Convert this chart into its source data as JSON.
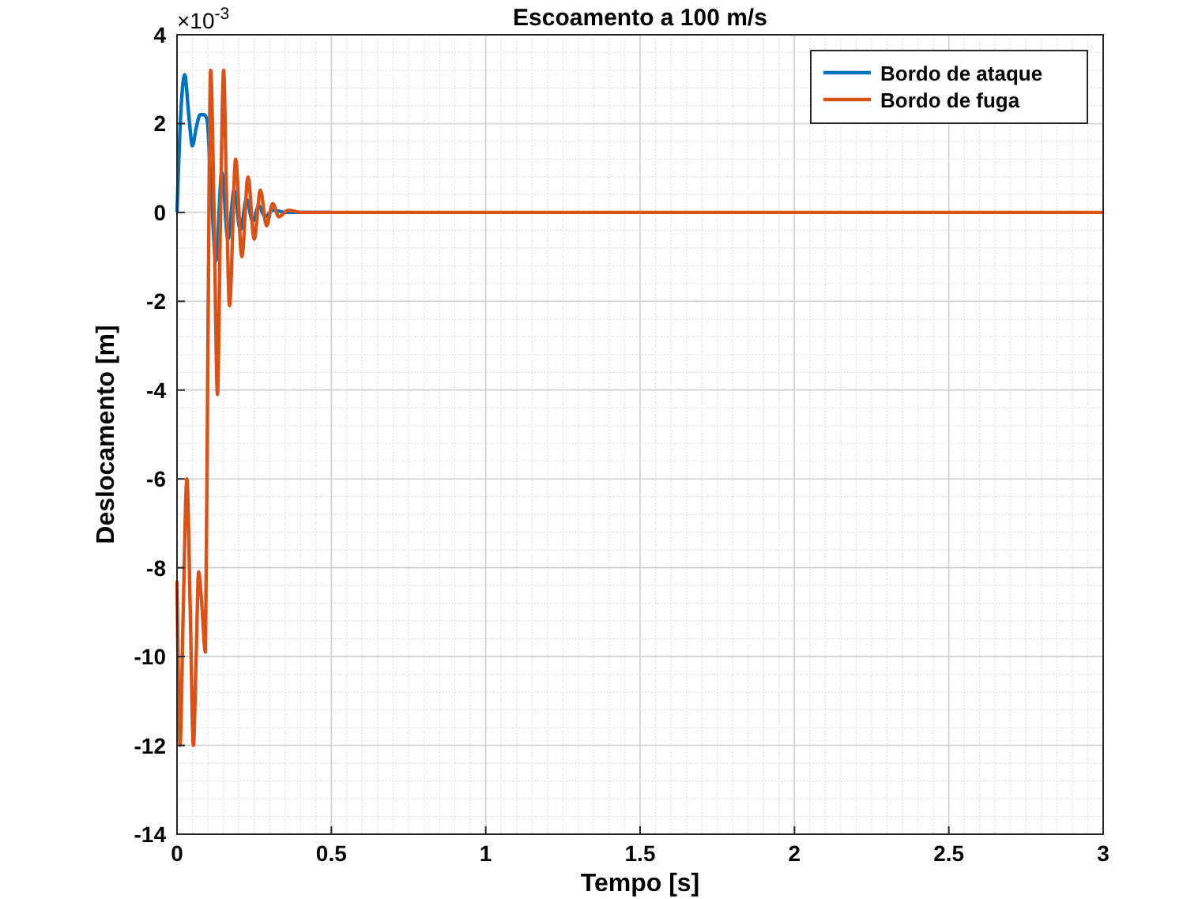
{
  "chart_data": {
    "type": "line",
    "title": "Escoamento a 100 m/s",
    "xlabel": "Tempo [s]",
    "ylabel": "Deslocamento [m]",
    "annotations": [
      "×10$^{-3}$"
    ],
    "xlim": [
      0,
      3
    ],
    "xticks": [
      0,
      0.5,
      1,
      1.5,
      2,
      2.5,
      3
    ],
    "ylim": [
      -14,
      4
    ],
    "yticks": [
      -14,
      -12,
      -10,
      -8,
      -6,
      -4,
      -2,
      0,
      2,
      4
    ],
    "grid": true,
    "legend": "top right",
    "line_style": "solid",
    "marker": "none",
    "series": [
      {
        "name": "Bordo de ataque",
        "color": "#0072bd",
        "x": [
          0,
          0.012,
          0.025,
          0.038,
          0.05,
          0.062,
          0.075,
          0.087,
          0.097,
          0.11,
          0.126,
          0.145,
          0.165,
          0.185,
          0.205,
          0.225,
          0.245,
          0.265,
          0.285,
          0.31,
          0.35,
          0.5
        ],
        "values": [
          0,
          2.2,
          3.1,
          2.2,
          1.5,
          1.9,
          2.2,
          2.2,
          2.1,
          0.6,
          -1.1,
          0.9,
          -0.6,
          0.5,
          -0.4,
          0.3,
          -0.2,
          0.15,
          -0.1,
          0.05,
          0,
          0
        ]
      },
      {
        "name": "Bordo de fuga",
        "color": "#d95319",
        "x": [
          0,
          0.01,
          0.02,
          0.032,
          0.043,
          0.053,
          0.062,
          0.07,
          0.08,
          0.092,
          0.1,
          0.109,
          0.12,
          0.131,
          0.141,
          0.151,
          0.16,
          0.17,
          0.19,
          0.21,
          0.23,
          0.25,
          0.27,
          0.29,
          0.31,
          0.33,
          0.36,
          0.4,
          0.5,
          1,
          2,
          3
        ],
        "values": [
          -8.3,
          -12,
          -9,
          -6,
          -9,
          -12,
          -10,
          -8.1,
          -8.8,
          -9.9,
          -3,
          3.2,
          0,
          -4.1,
          0,
          3.2,
          0.5,
          -2.1,
          1.2,
          -1,
          0.8,
          -0.6,
          0.5,
          -0.3,
          0.2,
          -0.1,
          0.05,
          0,
          0,
          0,
          0,
          0
        ]
      }
    ]
  }
}
